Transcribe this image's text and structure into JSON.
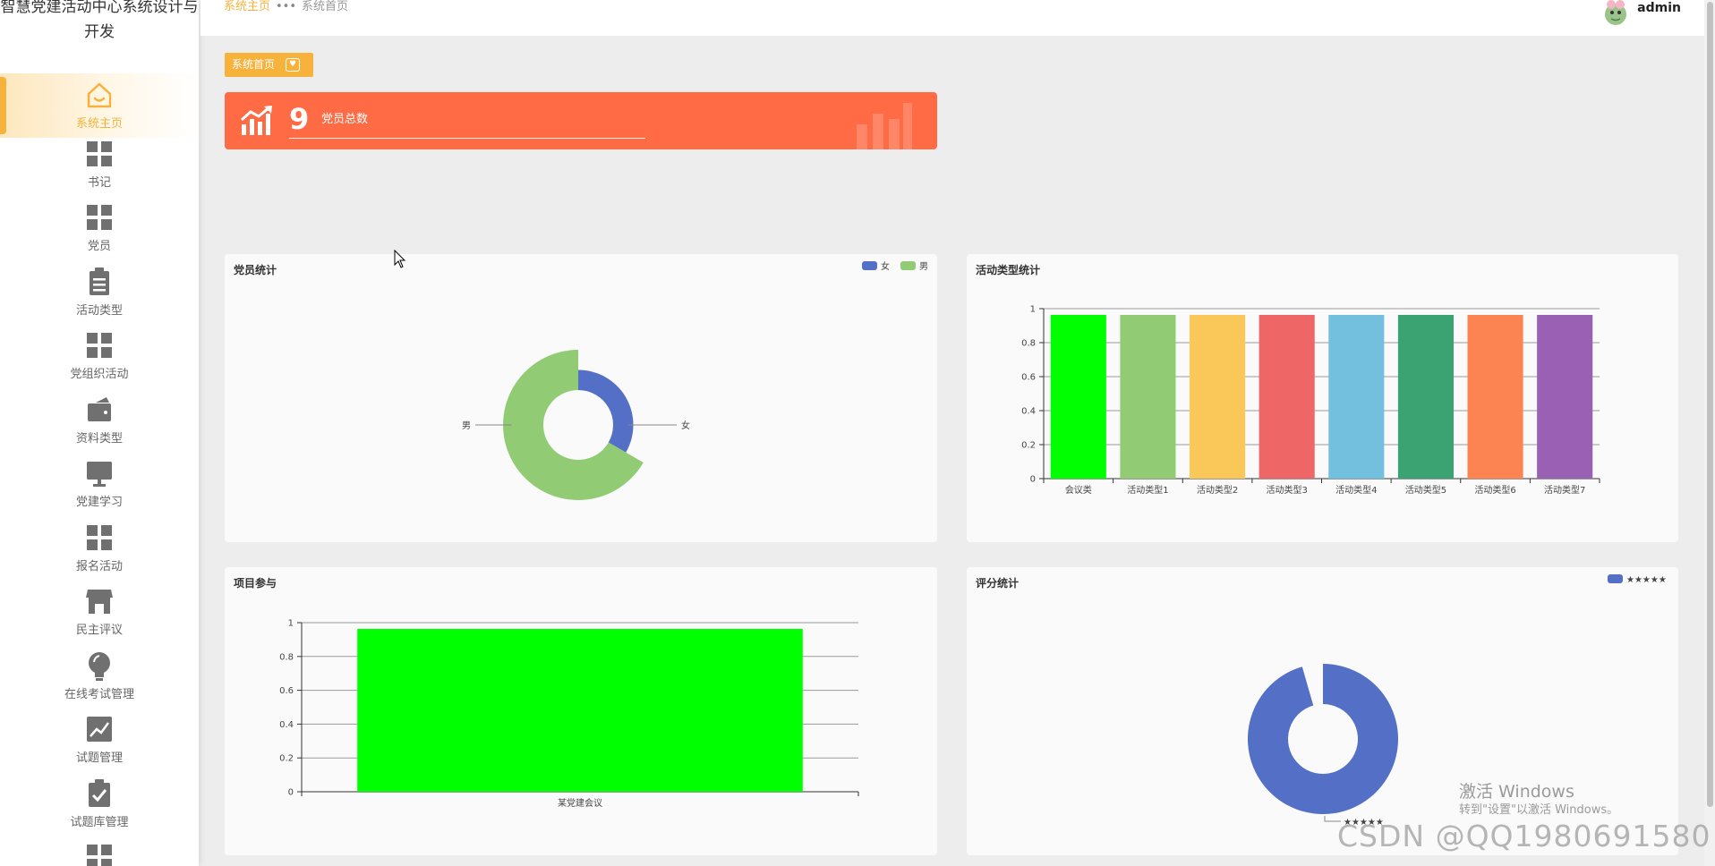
{
  "app": {
    "title": "智慧党建活动中心系统设计与开发"
  },
  "sidebar": {
    "items": [
      {
        "label": "系统主页",
        "icon": "home-icon",
        "active": true
      },
      {
        "label": "书记",
        "icon": "grid-icon"
      },
      {
        "label": "党员",
        "icon": "grid-icon"
      },
      {
        "label": "活动类型",
        "icon": "clipboard-icon"
      },
      {
        "label": "党组织活动",
        "icon": "grid-icon"
      },
      {
        "label": "资料类型",
        "icon": "wallet-icon"
      },
      {
        "label": "党建学习",
        "icon": "monitor-icon"
      },
      {
        "label": "报名活动",
        "icon": "grid-icon"
      },
      {
        "label": "民主评议",
        "icon": "shop-icon"
      },
      {
        "label": "在线考试管理",
        "icon": "bulb-icon"
      },
      {
        "label": "试题管理",
        "icon": "chart-icon"
      },
      {
        "label": "试题库管理",
        "icon": "checklist-icon"
      },
      {
        "label": "",
        "icon": "grid-icon"
      }
    ]
  },
  "topbar": {
    "breadcrumb": [
      "系统主页",
      "系统首页"
    ],
    "username": "admin"
  },
  "home_tag": {
    "label": "系统首页"
  },
  "stat": {
    "value": "9",
    "label": "党员总数"
  },
  "panels": {
    "members": {
      "title": "党员统计"
    },
    "types": {
      "title": "活动类型统计"
    },
    "projects": {
      "title": "项目参与"
    },
    "ratings": {
      "title": "评分统计"
    }
  },
  "colors": {
    "accent": "#f7b23c",
    "stat_card": "#ff6b45",
    "blue": "#5470c6",
    "green": "#91cc75"
  },
  "chart_data": [
    {
      "type": "pie",
      "title": "党员统计",
      "rose": true,
      "legend": [
        "女",
        "男"
      ],
      "legend_position": "top-right",
      "slices": [
        {
          "name": "女",
          "value": 1,
          "color": "#5470c6"
        },
        {
          "name": "男",
          "value": 2,
          "color": "#91cc75"
        }
      ]
    },
    {
      "type": "bar",
      "title": "活动类型统计",
      "categories": [
        "会议类",
        "活动类型1",
        "活动类型2",
        "活动类型3",
        "活动类型4",
        "活动类型5",
        "活动类型6",
        "活动类型7"
      ],
      "values": [
        1,
        1,
        1,
        1,
        1,
        1,
        1,
        1
      ],
      "colors": [
        "#00ff00",
        "#91cc75",
        "#fac858",
        "#ee6666",
        "#73c0de",
        "#3ba272",
        "#fc8452",
        "#9a60b4"
      ],
      "ylim": [
        0,
        1
      ],
      "yticks": [
        0,
        0.2,
        0.4,
        0.6,
        0.8,
        1
      ],
      "grid": true
    },
    {
      "type": "bar",
      "title": "项目参与",
      "categories": [
        "某党建会议"
      ],
      "values": [
        1
      ],
      "colors": [
        "#00ff00"
      ],
      "ylim": [
        0,
        1
      ],
      "yticks": [
        0,
        0.2,
        0.4,
        0.6,
        0.8,
        1
      ],
      "grid": true
    },
    {
      "type": "pie",
      "title": "评分统计",
      "donut": true,
      "legend": [
        "★★★★★"
      ],
      "legend_position": "top-right",
      "slices": [
        {
          "name": "★★★★★",
          "value": 1,
          "color": "#5470c6"
        }
      ]
    }
  ],
  "watermarks": {
    "windows_line1": "激活 Windows",
    "windows_line2": "转到\"设置\"以激活 Windows。",
    "csdn": "CSDN @QQ1980691580"
  }
}
